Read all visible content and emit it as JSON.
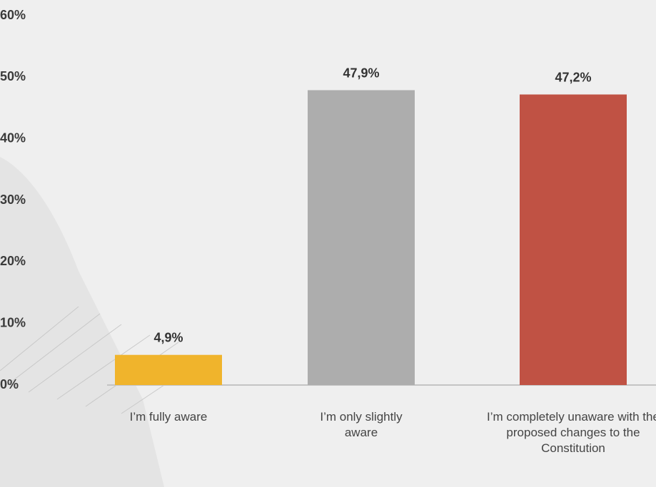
{
  "chart_data": {
    "type": "bar",
    "categories": [
      "I’m fully aware",
      "I’m only slightly aware",
      "I’m completely unaware with the proposed changes to the Constitution"
    ],
    "values": [
      4.9,
      47.9,
      47.2
    ],
    "value_labels": [
      "4,9%",
      "47,9%",
      "47,2%"
    ],
    "colors": [
      "#f0b42c",
      "#adadad",
      "#c05244"
    ],
    "ylim": [
      0,
      60
    ],
    "yticks": [
      {
        "value": 0,
        "label": "0%"
      },
      {
        "value": 10,
        "label": "10%"
      },
      {
        "value": 20,
        "label": "20%"
      },
      {
        "value": 30,
        "label": "30%"
      },
      {
        "value": 40,
        "label": "40%"
      },
      {
        "value": 50,
        "label": "50%"
      },
      {
        "value": 60,
        "label": "60%"
      }
    ],
    "grid": false
  }
}
